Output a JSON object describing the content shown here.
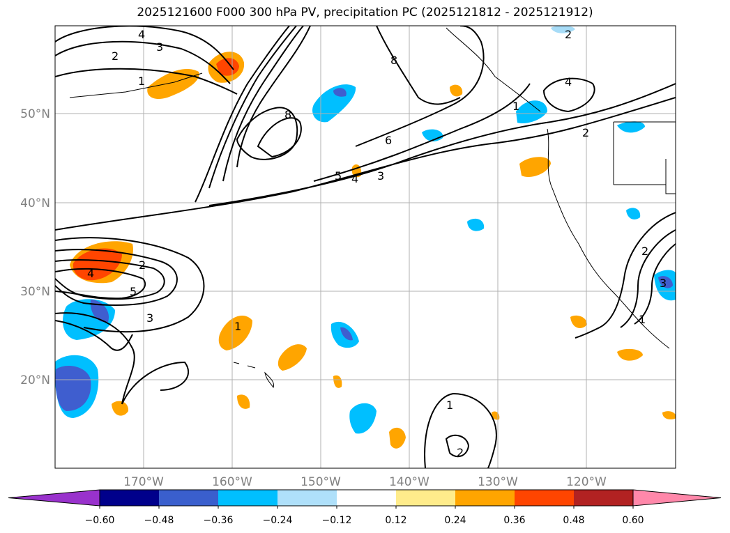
{
  "title": "2025121600 F000 300 hPa PV, precipitation PC (2025121812 - 2025121912)",
  "map": {
    "lon_labels": [
      "170°W",
      "160°W",
      "150°W",
      "140°W",
      "130°W",
      "120°W"
    ],
    "lat_labels": [
      "50°N",
      "40°N",
      "30°N",
      "20°N"
    ],
    "contour_labels": [
      "4",
      "3",
      "2",
      "1",
      "8",
      "5",
      "4",
      "6",
      "3",
      "8",
      "4",
      "2",
      "2",
      "4",
      "5",
      "2",
      "3",
      "1",
      "1",
      "2",
      "2",
      "3",
      "1",
      "1"
    ],
    "colors": {
      "pos_024": "#fde68a",
      "pos_036": "#ffa500",
      "pos_048": "#ff4500",
      "neg_024": "#a7dcf7",
      "neg_036": "#00bfff",
      "neg_048": "#3f5ecf",
      "contour": "#000000",
      "grid": "#b0b0b0"
    }
  },
  "colorbar": {
    "tick_labels": [
      "−0.60",
      "−0.48",
      "−0.36",
      "−0.24",
      "−0.12",
      "0.12",
      "0.24",
      "0.36",
      "0.48",
      "0.60"
    ],
    "colors": [
      "#9932cc",
      "#00008b",
      "#3a5fcd",
      "#00bfff",
      "#afe0fa",
      "#ffffff",
      "#ffec8b",
      "#ffa500",
      "#ff4500",
      "#b22222",
      "#ff88aa"
    ]
  }
}
